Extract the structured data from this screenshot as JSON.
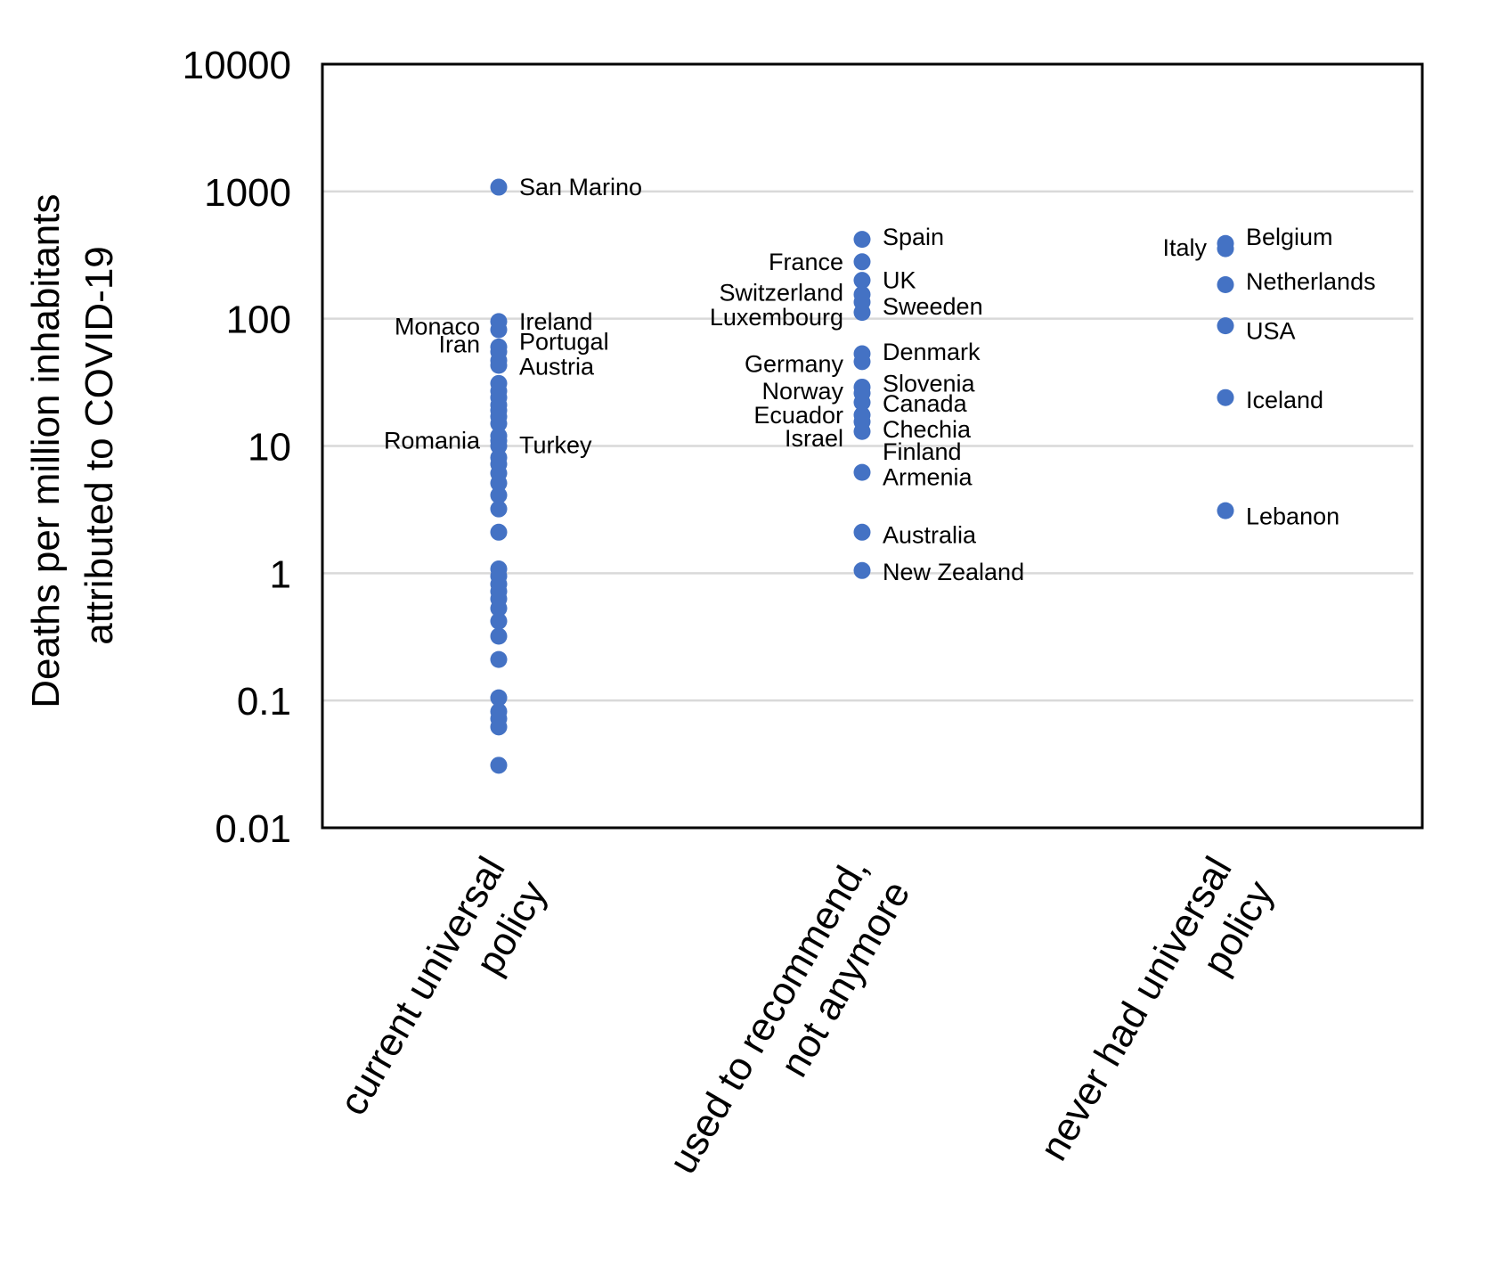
{
  "chart_data": {
    "type": "scatter",
    "title": "",
    "xlabel": "",
    "ylabel_lines": [
      "Deaths per million inhabitants",
      "attributed to COVID-19"
    ],
    "y_scale": "log",
    "ylim": [
      0.01,
      10000
    ],
    "y_ticks": [
      "0.01",
      "0.1",
      "1",
      "10",
      "100",
      "1000",
      "10000"
    ],
    "grid": true,
    "legend": "none",
    "color": "#4472C4",
    "categories": [
      {
        "lines": [
          "current universal",
          "policy"
        ]
      },
      {
        "lines": [
          "used to recommend,",
          "not anymore"
        ]
      },
      {
        "lines": [
          "never had universal",
          "policy"
        ]
      }
    ],
    "series": [
      {
        "name": "current universal policy",
        "category_index": 0,
        "points": [
          {
            "label": "San Marino",
            "y": 1080
          },
          {
            "label": "",
            "y": 95
          },
          {
            "label": "",
            "y": 82
          },
          {
            "label": "",
            "y": 60
          },
          {
            "label": "",
            "y": 55
          },
          {
            "label": "",
            "y": 47
          },
          {
            "label": "",
            "y": 43
          },
          {
            "label": "",
            "y": 31
          },
          {
            "label": "",
            "y": 27
          },
          {
            "label": "",
            "y": 24
          },
          {
            "label": "",
            "y": 21
          },
          {
            "label": "",
            "y": 19
          },
          {
            "label": "",
            "y": 17
          },
          {
            "label": "",
            "y": 15
          },
          {
            "label": "",
            "y": 12
          },
          {
            "label": "",
            "y": 11
          },
          {
            "label": "",
            "y": 10
          },
          {
            "label": "",
            "y": 8.1
          },
          {
            "label": "",
            "y": 7.2
          },
          {
            "label": "",
            "y": 6.1
          },
          {
            "label": "",
            "y": 5.1
          },
          {
            "label": "",
            "y": 4.1
          },
          {
            "label": "",
            "y": 3.2
          },
          {
            "label": "",
            "y": 2.1
          },
          {
            "label": "",
            "y": 1.08
          },
          {
            "label": "",
            "y": 0.95
          },
          {
            "label": "",
            "y": 0.82
          },
          {
            "label": "",
            "y": 0.72
          },
          {
            "label": "",
            "y": 0.63
          },
          {
            "label": "",
            "y": 0.53
          },
          {
            "label": "",
            "y": 0.42
          },
          {
            "label": "",
            "y": 0.32
          },
          {
            "label": "",
            "y": 0.21
          },
          {
            "label": "",
            "y": 0.105
          },
          {
            "label": "",
            "y": 0.082
          },
          {
            "label": "",
            "y": 0.072
          },
          {
            "label": "",
            "y": 0.062
          },
          {
            "label": "",
            "y": 0.031
          }
        ],
        "labels": [
          {
            "text": "San Marino",
            "y": 1080,
            "side": "right"
          },
          {
            "text": "Ireland",
            "y": 95,
            "side": "right"
          },
          {
            "text": "Monaco",
            "y": 87,
            "side": "left"
          },
          {
            "text": "Portugal",
            "y": 66,
            "side": "right"
          },
          {
            "text": "Iran",
            "y": 63,
            "side": "left"
          },
          {
            "text": "Austria",
            "y": 42,
            "side": "right"
          },
          {
            "text": "Romania",
            "y": 11,
            "side": "left"
          },
          {
            "text": "Turkey",
            "y": 10.2,
            "side": "right"
          }
        ]
      },
      {
        "name": "used to recommend, not anymore",
        "category_index": 1,
        "points": [
          {
            "label": "Spain",
            "y": 420
          },
          {
            "label": "France",
            "y": 280
          },
          {
            "label": "UK",
            "y": 200
          },
          {
            "label": "Switzerland",
            "y": 155
          },
          {
            "label": "Sweeden",
            "y": 135
          },
          {
            "label": "Luxembourg",
            "y": 112
          },
          {
            "label": "Denmark",
            "y": 53
          },
          {
            "label": "Germany",
            "y": 46
          },
          {
            "label": "Slovenia",
            "y": 29
          },
          {
            "label": "Norway",
            "y": 26
          },
          {
            "label": "Canada",
            "y": 22
          },
          {
            "label": "Ecuador",
            "y": 17.5
          },
          {
            "label": "Chechia",
            "y": 15.5
          },
          {
            "label": "Israel",
            "y": 13
          },
          {
            "label": "Armenia",
            "y": 6.2
          },
          {
            "label": "Australia",
            "y": 2.1
          },
          {
            "label": "New Zealand",
            "y": 1.05
          }
        ],
        "labels": [
          {
            "text": "Spain",
            "y": 440,
            "side": "right"
          },
          {
            "text": "France",
            "y": 280,
            "side": "left"
          },
          {
            "text": "UK",
            "y": 200,
            "side": "right"
          },
          {
            "text": "Switzerland",
            "y": 160,
            "side": "left"
          },
          {
            "text": "Sweeden",
            "y": 125,
            "side": "right"
          },
          {
            "text": "Luxembourg",
            "y": 103,
            "side": "left"
          },
          {
            "text": "Denmark",
            "y": 55,
            "side": "right"
          },
          {
            "text": "Germany",
            "y": 44,
            "side": "left"
          },
          {
            "text": "Slovenia",
            "y": 31,
            "side": "right"
          },
          {
            "text": "Norway",
            "y": 27,
            "side": "left"
          },
          {
            "text": "Canada",
            "y": 21.5,
            "side": "right"
          },
          {
            "text": "Ecuador",
            "y": 17.5,
            "side": "left"
          },
          {
            "text": "Chechia",
            "y": 13.5,
            "side": "right"
          },
          {
            "text": "Israel",
            "y": 11.5,
            "side": "left"
          },
          {
            "text": "Finland",
            "y": 9,
            "side": "right"
          },
          {
            "text": "Armenia",
            "y": 5.7,
            "side": "right"
          },
          {
            "text": "Australia",
            "y": 2.0,
            "side": "right"
          },
          {
            "text": "New Zealand",
            "y": 1.02,
            "side": "right"
          }
        ]
      },
      {
        "name": "never had universal policy",
        "category_index": 2,
        "points": [
          {
            "label": "Belgium",
            "y": 390
          },
          {
            "label": "Italy",
            "y": 355
          },
          {
            "label": "Netherlands",
            "y": 185
          },
          {
            "label": "USA",
            "y": 88
          },
          {
            "label": "Iceland",
            "y": 24
          },
          {
            "label": "Lebanon",
            "y": 3.1
          }
        ],
        "labels": [
          {
            "text": "Belgium",
            "y": 440,
            "side": "right"
          },
          {
            "text": "Italy",
            "y": 360,
            "side": "left"
          },
          {
            "text": "Netherlands",
            "y": 195,
            "side": "right"
          },
          {
            "text": "USA",
            "y": 80,
            "side": "right"
          },
          {
            "text": "Iceland",
            "y": 23,
            "side": "right"
          },
          {
            "text": "Lebanon",
            "y": 2.8,
            "side": "right"
          }
        ]
      }
    ]
  }
}
